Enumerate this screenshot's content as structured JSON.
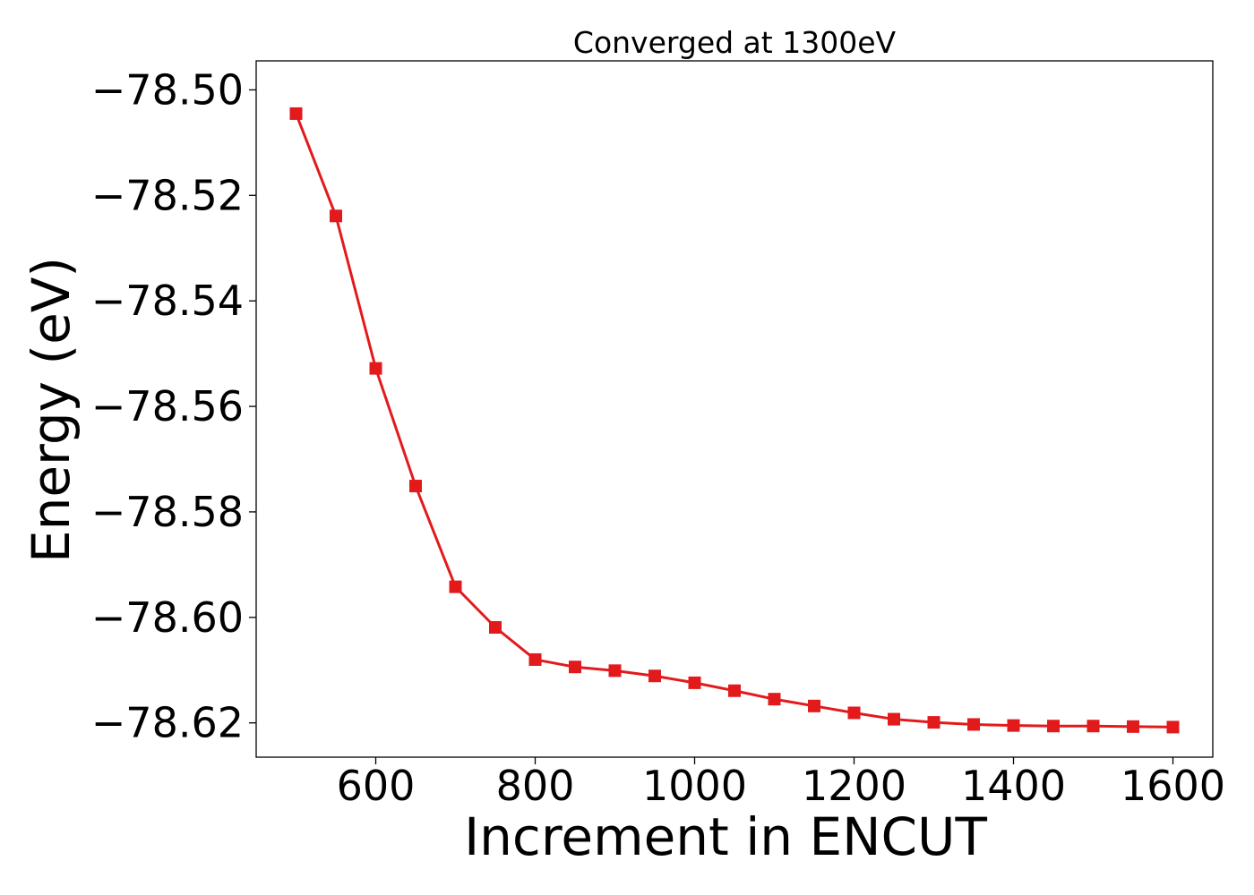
{
  "chart_data": {
    "type": "line",
    "title": "Converged at 1300eV",
    "xlabel": "Increment in ENCUT",
    "ylabel": "Energy (eV)",
    "xlim": [
      450,
      1650
    ],
    "ylim": [
      -78.6265,
      -78.4945
    ],
    "x_ticks": [
      600,
      800,
      1000,
      1200,
      1400,
      1600
    ],
    "x_tick_labels": [
      "600",
      "800",
      "1000",
      "1200",
      "1400",
      "1600"
    ],
    "y_ticks": [
      -78.5,
      -78.52,
      -78.54,
      -78.56,
      -78.58,
      -78.6,
      -78.62
    ],
    "y_tick_labels": [
      "−78.50",
      "−78.52",
      "−78.54",
      "−78.56",
      "−78.58",
      "−78.60",
      "−78.62"
    ],
    "grid": false,
    "legend": "none",
    "series": [
      {
        "color": "#e31a1c",
        "marker": "square",
        "x": [
          500,
          550,
          600,
          650,
          700,
          750,
          800,
          850,
          900,
          950,
          1000,
          1050,
          1100,
          1150,
          1200,
          1250,
          1300,
          1350,
          1400,
          1450,
          1500,
          1550,
          1600
        ],
        "y": [
          -78.5045,
          -78.5239,
          -78.5528,
          -78.5751,
          -78.5942,
          -78.6019,
          -78.608,
          -78.6094,
          -78.6101,
          -78.6111,
          -78.6124,
          -78.6139,
          -78.6155,
          -78.6168,
          -78.6181,
          -78.6193,
          -78.6199,
          -78.6203,
          -78.6205,
          -78.6206,
          -78.6206,
          -78.6207,
          -78.6208
        ]
      }
    ]
  }
}
